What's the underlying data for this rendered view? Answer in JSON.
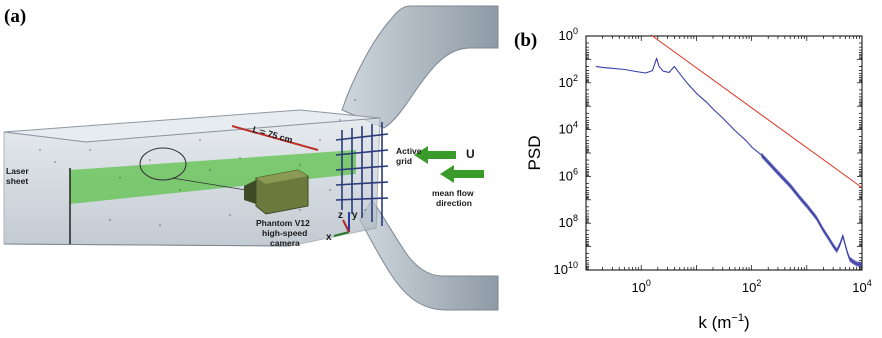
{
  "figure": {
    "panel_a_label": "(a)",
    "panel_b_label": "(b)"
  },
  "setup": {
    "length_label": "L = 75 cm",
    "flow_symbol": "U",
    "active_grid_line1": "Active",
    "active_grid_line2": "grid",
    "mean_flow_line1": "mean flow",
    "mean_flow_line2": "direction",
    "laser_line1": "Laser",
    "laser_line2": "sheet",
    "camera_line1": "Phantom V12",
    "camera_line2": "high-speed",
    "camera_line3": "camera",
    "axis_x": "x",
    "axis_y": "y",
    "axis_z": "z",
    "colors": {
      "laser": "#5cc24a",
      "flow_arrow": "#3a9a2a",
      "grid": "#2a3a7a",
      "duct": "#bcc8d2",
      "scale_bar": "#c0302a",
      "camera": "#6b7a3c"
    }
  },
  "chart_data": {
    "type": "line",
    "ylabel": "PSD",
    "xlabel": "k (m",
    "xlabel_sup": "−1",
    "xlabel_close": ")",
    "x_scale": "log",
    "y_scale": "log",
    "y_axis_inverted": true,
    "xlim": [
      0.1,
      10000
    ],
    "ylim": [
      1,
      10000000000.0
    ],
    "x_ticks": [
      {
        "base": "10",
        "exp": "0",
        "value": 1
      },
      {
        "base": "10",
        "exp": "2",
        "value": 100
      },
      {
        "base": "10",
        "exp": "4",
        "value": 10000
      }
    ],
    "y_ticks": [
      {
        "base": "10",
        "exp": "0",
        "value": 1
      },
      {
        "base": "10",
        "exp": "2",
        "value": 100
      },
      {
        "base": "10",
        "exp": "4",
        "value": 10000
      },
      {
        "base": "10",
        "exp": "6",
        "value": 1000000
      },
      {
        "base": "10",
        "exp": "8",
        "value": 100000000
      },
      {
        "base": "10",
        "exp": "10",
        "value": 10000000000
      }
    ],
    "grid": false,
    "series": [
      {
        "color": "#3b3fa6",
        "x": [
          0.15,
          0.2,
          0.3,
          0.5,
          0.8,
          1.2,
          1.6,
          1.9,
          2.1,
          2.5,
          3.2,
          4.0,
          4.7,
          5.5,
          7,
          10,
          15,
          20,
          30,
          50,
          80,
          100,
          150,
          200,
          300,
          500,
          800,
          1000,
          1500,
          2000,
          2500,
          3000,
          3500,
          4000,
          4500,
          5000,
          5500,
          6000,
          7000,
          8000,
          10000
        ],
        "y": [
          20,
          22,
          24,
          27,
          33,
          38,
          30,
          9,
          20,
          32,
          36,
          20,
          34,
          55,
          110,
          280,
          650,
          1300,
          3200,
          11000,
          30000,
          55000,
          120000,
          250000,
          700000,
          2500000,
          10000000,
          18000000,
          60000000,
          200000000,
          450000000,
          900000000,
          1500000000,
          800000000,
          350000000,
          900000000,
          2000000000,
          3500000000,
          4500000000,
          5500000000,
          6000000000
        ]
      },
      {
        "color": "#e03020",
        "x": [
          1.5,
          10000
        ],
        "y": [
          0.9,
          3000000
        ]
      }
    ]
  }
}
